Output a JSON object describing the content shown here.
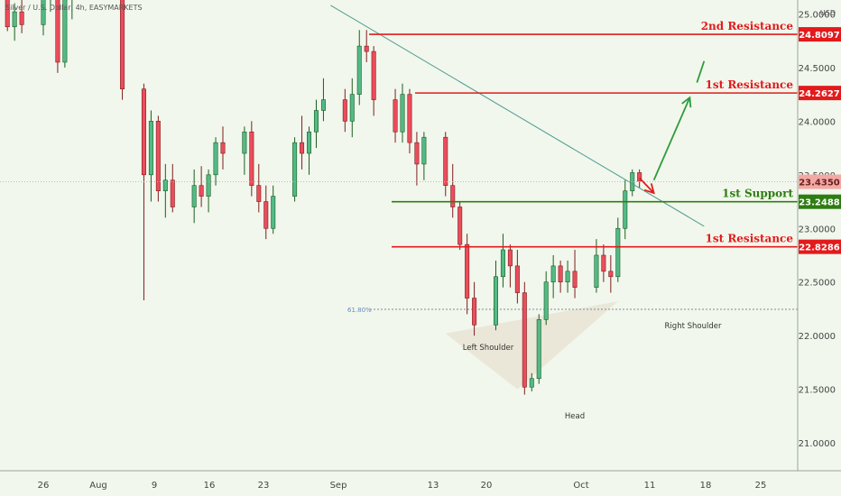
{
  "title": "Silver / U.S. Dollar, 4h, EASYMARKETS",
  "currency": "USD",
  "colors": {
    "background": "#f1f7ec",
    "up_candle": "#53b987",
    "up_border": "#1b5e20",
    "down_candle": "#eb4d5c",
    "down_border": "#7f1d1d",
    "resistance": "#e31a1c",
    "support": "#2e7d12",
    "trendline": "#4f9b92",
    "arrow": "#2e9b3e",
    "current_price_bg": "#f2a9a4",
    "pattern_fill": "#e9e4d6"
  },
  "chart_data": {
    "type": "candlestick",
    "y_axis": {
      "ylim": [
        20.74,
        25.13
      ],
      "ticks": [
        "21.0000",
        "21.5000",
        "22.0000",
        "22.5000",
        "23.0000",
        "23.5000",
        "24.0000",
        "24.5000",
        "25.0000"
      ]
    },
    "x_axis": {
      "ticks": [
        "26",
        "Aug",
        "9",
        "16",
        "23",
        "Sep",
        "13",
        "20",
        "Oct",
        "11",
        "18",
        "25"
      ]
    },
    "levels": [
      {
        "name": "2nd Resistance",
        "value": "24.8097",
        "price": 24.8097,
        "kind": "resistance"
      },
      {
        "name": "1st Resistance",
        "value": "24.2627",
        "price": 24.2627,
        "kind": "resistance"
      },
      {
        "name": "1st Support",
        "value": "23.2488",
        "price": 23.2488,
        "kind": "support"
      },
      {
        "name": "1st Resistance",
        "value": "22.8286",
        "price": 22.8286,
        "kind": "resistance"
      }
    ],
    "current_price": {
      "value": "23.4350",
      "price": 23.435
    },
    "fib_label": "61.80%",
    "fib_price": 22.245,
    "pattern_labels": {
      "left": "Left Shoulder",
      "head": "Head",
      "right": "Right Shoulder"
    },
    "pattern_points": [
      {
        "date": "Sep 20",
        "price": 22.02
      },
      {
        "date": "Sep 30",
        "price": 21.5
      },
      {
        "date": "Oct 14",
        "price": 22.32
      }
    ],
    "trendline": [
      {
        "date": "Sep 4",
        "price": 25.08
      },
      {
        "date": "Oct 26",
        "price": 23.02
      }
    ],
    "candles": [
      {
        "date": "Jul 21",
        "o": 25.2,
        "h": 25.35,
        "l": 24.84,
        "c": 24.88
      },
      {
        "date": "Jul 22",
        "o": 24.88,
        "h": 25.1,
        "l": 24.75,
        "c": 25.02
      },
      {
        "date": "Jul 23",
        "o": 25.02,
        "h": 25.22,
        "l": 24.82,
        "c": 24.9
      },
      {
        "date": "Jul 26",
        "o": 24.9,
        "h": 25.25,
        "l": 24.8,
        "c": 25.15
      },
      {
        "date": "Jul 27",
        "o": 25.15,
        "h": 25.38,
        "l": 25.02,
        "c": 25.28
      },
      {
        "date": "Jul 28",
        "o": 25.28,
        "h": 25.5,
        "l": 24.45,
        "c": 24.55
      },
      {
        "date": "Jul 29",
        "o": 24.55,
        "h": 25.25,
        "l": 24.5,
        "c": 25.15
      },
      {
        "date": "Jul 30",
        "o": 25.15,
        "h": 25.35,
        "l": 24.95,
        "c": 25.25
      },
      {
        "date": "Aug 6",
        "o": 25.2,
        "h": 25.3,
        "l": 24.2,
        "c": 24.3
      },
      {
        "date": "Aug 9",
        "o": 24.3,
        "h": 24.35,
        "l": 22.33,
        "c": 23.5
      },
      {
        "date": "Aug 10",
        "o": 23.5,
        "h": 24.1,
        "l": 23.25,
        "c": 24.0
      },
      {
        "date": "Aug 11",
        "o": 24.0,
        "h": 24.05,
        "l": 23.25,
        "c": 23.35
      },
      {
        "date": "Aug 12",
        "o": 23.35,
        "h": 23.6,
        "l": 23.1,
        "c": 23.45
      },
      {
        "date": "Aug 13",
        "o": 23.45,
        "h": 23.6,
        "l": 23.15,
        "c": 23.2
      },
      {
        "date": "Aug 16",
        "o": 23.2,
        "h": 23.55,
        "l": 23.05,
        "c": 23.4
      },
      {
        "date": "Aug 17",
        "o": 23.4,
        "h": 23.58,
        "l": 23.2,
        "c": 23.3
      },
      {
        "date": "Aug 18",
        "o": 23.3,
        "h": 23.55,
        "l": 23.15,
        "c": 23.5
      },
      {
        "date": "Aug 19",
        "o": 23.5,
        "h": 23.85,
        "l": 23.4,
        "c": 23.8
      },
      {
        "date": "Aug 20",
        "o": 23.8,
        "h": 23.95,
        "l": 23.55,
        "c": 23.7
      },
      {
        "date": "Aug 23",
        "o": 23.7,
        "h": 23.95,
        "l": 23.5,
        "c": 23.9
      },
      {
        "date": "Aug 24",
        "o": 23.9,
        "h": 24.0,
        "l": 23.3,
        "c": 23.4
      },
      {
        "date": "Aug 25",
        "o": 23.4,
        "h": 23.6,
        "l": 23.15,
        "c": 23.25
      },
      {
        "date": "Aug 26",
        "o": 23.25,
        "h": 23.4,
        "l": 22.9,
        "c": 23.0
      },
      {
        "date": "Aug 27",
        "o": 23.0,
        "h": 23.4,
        "l": 22.95,
        "c": 23.3
      },
      {
        "date": "Aug 30",
        "o": 23.3,
        "h": 23.85,
        "l": 23.25,
        "c": 23.8
      },
      {
        "date": "Aug 31",
        "o": 23.8,
        "h": 24.05,
        "l": 23.55,
        "c": 23.7
      },
      {
        "date": "Sep 1",
        "o": 23.7,
        "h": 23.95,
        "l": 23.5,
        "c": 23.9
      },
      {
        "date": "Sep 2",
        "o": 23.9,
        "h": 24.2,
        "l": 23.75,
        "c": 24.1
      },
      {
        "date": "Sep 3",
        "o": 24.1,
        "h": 24.4,
        "l": 24.0,
        "c": 24.2
      },
      {
        "date": "Sep 6",
        "o": 24.2,
        "h": 24.3,
        "l": 23.9,
        "c": 24.0
      },
      {
        "date": "Sep 7",
        "o": 24.0,
        "h": 24.4,
        "l": 23.85,
        "c": 24.25
      },
      {
        "date": "Sep 8",
        "o": 24.25,
        "h": 24.85,
        "l": 24.15,
        "c": 24.7
      },
      {
        "date": "Sep 9",
        "o": 24.7,
        "h": 24.85,
        "l": 24.55,
        "c": 24.65
      },
      {
        "date": "Sep 10",
        "o": 24.65,
        "h": 24.7,
        "l": 24.05,
        "c": 24.2
      },
      {
        "date": "Sep 13",
        "o": 24.2,
        "h": 24.3,
        "l": 23.8,
        "c": 23.9
      },
      {
        "date": "Sep 14",
        "o": 23.9,
        "h": 24.35,
        "l": 23.8,
        "c": 24.25
      },
      {
        "date": "Sep 15",
        "o": 24.25,
        "h": 24.3,
        "l": 23.7,
        "c": 23.8
      },
      {
        "date": "Sep 16",
        "o": 23.8,
        "h": 23.9,
        "l": 23.4,
        "c": 23.6
      },
      {
        "date": "Sep 17",
        "o": 23.6,
        "h": 23.9,
        "l": 23.45,
        "c": 23.85
      },
      {
        "date": "Sep 20",
        "o": 23.85,
        "h": 23.9,
        "l": 23.3,
        "c": 23.4
      },
      {
        "date": "Sep 21",
        "o": 23.4,
        "h": 23.6,
        "l": 23.1,
        "c": 23.2
      },
      {
        "date": "Sep 22",
        "o": 23.2,
        "h": 23.25,
        "l": 22.8,
        "c": 22.85
      },
      {
        "date": "Sep 23",
        "o": 22.85,
        "h": 22.95,
        "l": 22.2,
        "c": 22.35
      },
      {
        "date": "Sep 24",
        "o": 22.35,
        "h": 22.5,
        "l": 22.0,
        "c": 22.1
      },
      {
        "date": "Sep 27",
        "o": 22.1,
        "h": 22.7,
        "l": 22.05,
        "c": 22.55
      },
      {
        "date": "Sep 28",
        "o": 22.55,
        "h": 22.95,
        "l": 22.45,
        "c": 22.8
      },
      {
        "date": "Sep 29",
        "o": 22.8,
        "h": 22.85,
        "l": 22.45,
        "c": 22.65
      },
      {
        "date": "Sep 30",
        "o": 22.65,
        "h": 22.8,
        "l": 22.3,
        "c": 22.4
      },
      {
        "date": "Oct 1",
        "o": 22.4,
        "h": 22.5,
        "l": 21.45,
        "c": 21.52
      },
      {
        "date": "Oct 2",
        "o": 21.52,
        "h": 21.65,
        "l": 21.48,
        "c": 21.6
      },
      {
        "date": "Oct 3",
        "o": 21.6,
        "h": 22.2,
        "l": 21.55,
        "c": 22.15
      },
      {
        "date": "Oct 4",
        "o": 22.15,
        "h": 22.6,
        "l": 22.1,
        "c": 22.5
      },
      {
        "date": "Oct 5",
        "o": 22.5,
        "h": 22.75,
        "l": 22.35,
        "c": 22.65
      },
      {
        "date": "Oct 6",
        "o": 22.65,
        "h": 22.7,
        "l": 22.4,
        "c": 22.5
      },
      {
        "date": "Oct 7",
        "o": 22.5,
        "h": 22.7,
        "l": 22.4,
        "c": 22.6
      },
      {
        "date": "Oct 8",
        "o": 22.6,
        "h": 22.8,
        "l": 22.35,
        "c": 22.45
      },
      {
        "date": "Oct 11",
        "o": 22.45,
        "h": 22.9,
        "l": 22.4,
        "c": 22.75
      },
      {
        "date": "Oct 12",
        "o": 22.75,
        "h": 22.85,
        "l": 22.5,
        "c": 22.6
      },
      {
        "date": "Oct 13",
        "o": 22.6,
        "h": 22.75,
        "l": 22.4,
        "c": 22.55
      },
      {
        "date": "Oct 14",
        "o": 22.55,
        "h": 23.1,
        "l": 22.5,
        "c": 23.0
      },
      {
        "date": "Oct 15",
        "o": 23.0,
        "h": 23.45,
        "l": 22.9,
        "c": 23.35
      },
      {
        "date": "Oct 16",
        "o": 23.35,
        "h": 23.55,
        "l": 23.3,
        "c": 23.52
      },
      {
        "date": "Oct 17",
        "o": 23.52,
        "h": 23.55,
        "l": 23.38,
        "c": 23.44
      }
    ],
    "forecast_arrow_down": {
      "from": {
        "date": "Oct 17",
        "price": 23.47
      },
      "to": {
        "date": "Oct 19",
        "price": 23.33
      }
    },
    "forecast_arrow_up": {
      "from": {
        "date": "Oct 19",
        "price": 23.45
      },
      "to": {
        "date": "Oct 24",
        "price": 24.22
      }
    },
    "forecast_arrow_far": {
      "from": {
        "date": "Oct 25",
        "price": 24.36
      },
      "to": {
        "date": "Oct 26",
        "price": 24.56
      }
    }
  }
}
